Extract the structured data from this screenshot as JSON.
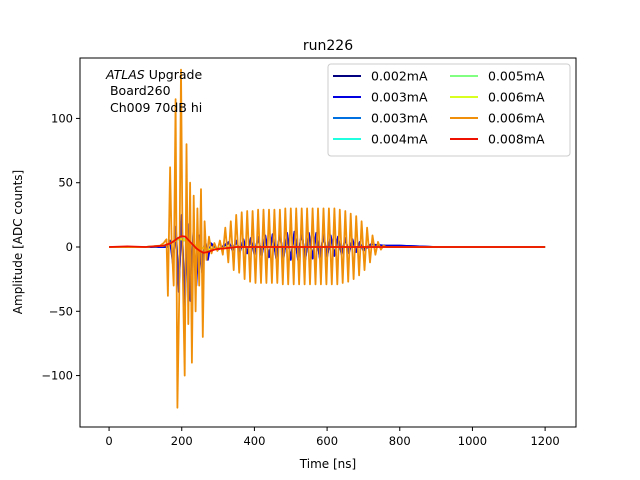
{
  "chart_data": {
    "type": "line",
    "title": "run226",
    "xlabel": "Time [ns]",
    "ylabel": "Amplitude [ADC counts]",
    "xlim": [
      -80,
      1285
    ],
    "ylim": [
      -140,
      147
    ],
    "xticks": [
      0,
      200,
      400,
      600,
      800,
      1000,
      1200
    ],
    "yticks": [
      -100,
      -50,
      0,
      50,
      100
    ],
    "xtick_labels": [
      "0",
      "200",
      "400",
      "600",
      "800",
      "1000",
      "1200"
    ],
    "ytick_labels": [
      "−100",
      "−50",
      "0",
      "50",
      "100"
    ],
    "annotation": {
      "experiment": "ATLAS",
      "line1_rest": " Upgrade",
      "line2": " Board260",
      "line3": " Ch009 70dB hi"
    },
    "legend_position": "upper right",
    "legend_columns": 2,
    "series": [
      {
        "name": "0.002mA",
        "color": "#000080",
        "x": [
          0,
          100,
          160,
          168,
          176,
          184,
          192,
          200,
          208,
          216,
          224,
          232,
          240,
          248,
          256,
          264,
          272,
          280,
          300,
          330,
          340,
          350,
          360,
          370,
          380,
          390,
          400,
          410,
          420,
          430,
          440,
          450,
          460,
          470,
          480,
          490,
          500,
          510,
          520,
          530,
          540,
          550,
          560,
          570,
          580,
          590,
          600,
          610,
          620,
          630,
          640,
          650,
          660,
          670,
          680,
          690,
          700,
          720,
          760,
          800,
          900,
          1000,
          1100,
          1200
        ],
        "y": [
          0,
          0,
          0,
          4,
          -10,
          12,
          -30,
          20,
          -40,
          15,
          -30,
          10,
          -25,
          8,
          -15,
          6,
          -8,
          2,
          -2,
          3,
          -2,
          4,
          -3,
          5,
          -4,
          6,
          -5,
          7,
          -6,
          8,
          -7,
          9,
          -8,
          10,
          -8,
          10,
          -9,
          11,
          -9,
          11,
          -9,
          10,
          -8,
          10,
          -8,
          9,
          -7,
          8,
          -6,
          7,
          -5,
          6,
          -4,
          5,
          -3,
          3,
          -2,
          2,
          1,
          1,
          0,
          0,
          0,
          0
        ]
      },
      {
        "name": "0.003mA",
        "color": "#0000e0",
        "x": [
          0,
          100,
          160,
          168,
          176,
          184,
          192,
          200,
          208,
          216,
          224,
          232,
          240,
          248,
          256,
          264,
          272,
          280,
          300,
          330,
          340,
          350,
          360,
          370,
          380,
          390,
          400,
          410,
          420,
          430,
          440,
          450,
          460,
          470,
          480,
          490,
          500,
          510,
          520,
          530,
          540,
          550,
          560,
          570,
          580,
          590,
          600,
          610,
          620,
          630,
          640,
          650,
          660,
          670,
          680,
          690,
          700,
          720,
          760,
          800,
          900,
          1000,
          1100,
          1200
        ],
        "y": [
          0,
          0,
          0,
          5,
          -14,
          16,
          -35,
          25,
          -50,
          18,
          -42,
          12,
          -30,
          9,
          -20,
          7,
          -10,
          3,
          -2,
          4,
          -3,
          5,
          -4,
          6,
          -5,
          7,
          -6,
          8,
          -7,
          9,
          -8,
          10,
          -9,
          11,
          -9,
          11,
          -10,
          12,
          -10,
          12,
          -10,
          11,
          -9,
          11,
          -9,
          10,
          -8,
          9,
          -7,
          8,
          -6,
          7,
          -5,
          6,
          -4,
          4,
          -3,
          2,
          1,
          1,
          0,
          0,
          0,
          0
        ]
      },
      {
        "name": "0.003mA",
        "color": "#0070e0",
        "x": [
          0,
          100,
          150,
          170,
          190,
          210,
          230,
          250,
          270,
          300,
          350,
          400,
          600,
          800,
          1000,
          1200
        ],
        "y": [
          0,
          0,
          1,
          3,
          6,
          5,
          2,
          0,
          -2,
          -1,
          0,
          0,
          0,
          0,
          0,
          0
        ]
      },
      {
        "name": "0.004mA",
        "color": "#20ffe0",
        "x": [
          0,
          100,
          150,
          170,
          190,
          210,
          230,
          250,
          270,
          300,
          350,
          400,
          600,
          800,
          1000,
          1200
        ],
        "y": [
          0,
          0,
          1,
          3,
          7,
          6,
          2,
          0,
          -2,
          -1,
          0,
          0,
          0,
          0,
          0,
          0
        ]
      },
      {
        "name": "0.005mA",
        "color": "#80ff80",
        "x": [
          0,
          100,
          150,
          170,
          190,
          210,
          230,
          250,
          270,
          300,
          350,
          400,
          600,
          800,
          1000,
          1200
        ],
        "y": [
          0,
          0,
          1,
          3,
          6,
          6,
          2,
          0,
          -2,
          -1,
          0,
          0,
          0,
          0,
          0,
          0
        ]
      },
      {
        "name": "0.006mA",
        "color": "#d8ff20",
        "x": [
          0,
          100,
          150,
          170,
          190,
          210,
          230,
          250,
          270,
          300,
          350,
          400,
          600,
          800,
          1000,
          1200
        ],
        "y": [
          0,
          0,
          1,
          3,
          7,
          5,
          2,
          0,
          -2,
          -1,
          0,
          0,
          0,
          0,
          0,
          0
        ]
      },
      {
        "name": "0.006mA",
        "color": "#f0900a",
        "x": [
          0,
          100,
          140,
          150,
          155,
          158,
          162,
          168,
          172,
          178,
          183,
          188,
          193,
          198,
          203,
          208,
          213,
          218,
          223,
          228,
          233,
          238,
          243,
          248,
          253,
          258,
          263,
          268,
          275,
          282,
          290,
          298,
          305,
          313,
          320,
          328,
          335,
          343,
          350,
          358,
          365,
          373,
          380,
          388,
          395,
          403,
          410,
          418,
          425,
          433,
          440,
          448,
          455,
          463,
          470,
          478,
          485,
          493,
          500,
          508,
          515,
          523,
          530,
          538,
          545,
          553,
          560,
          568,
          575,
          583,
          590,
          598,
          605,
          613,
          620,
          628,
          635,
          643,
          650,
          658,
          665,
          673,
          680,
          688,
          695,
          703,
          710,
          718,
          725,
          733,
          740,
          748,
          755,
          763,
          770,
          780,
          790,
          800,
          850,
          900,
          1000,
          1100,
          1200
        ],
        "y": [
          0,
          0,
          1,
          3,
          5,
          6,
          -38,
          62,
          5,
          -30,
          115,
          -125,
          -40,
          138,
          -20,
          -100,
          80,
          -60,
          50,
          -90,
          40,
          -50,
          30,
          -30,
          45,
          -70,
          20,
          -10,
          8,
          -5,
          3,
          -3,
          5,
          -6,
          15,
          -12,
          20,
          -18,
          25,
          -20,
          27,
          -25,
          28,
          -27,
          28,
          -28,
          29,
          -28,
          29,
          -28,
          29,
          -28,
          29,
          -28,
          29,
          -29,
          30,
          -29,
          30,
          -29,
          30,
          -29,
          30,
          -29,
          30,
          -29,
          30,
          -29,
          30,
          -29,
          30,
          -29,
          30,
          -29,
          30,
          -29,
          29,
          -28,
          28,
          -27,
          26,
          -25,
          24,
          -22,
          20,
          -18,
          15,
          -12,
          9,
          -6,
          4,
          -2,
          1,
          0,
          0,
          0,
          0,
          0,
          0,
          0,
          0,
          0,
          0
        ]
      },
      {
        "name": "0.008mA",
        "color": "#ee1000",
        "x": [
          0,
          50,
          100,
          150,
          170,
          180,
          190,
          200,
          210,
          220,
          230,
          240,
          250,
          260,
          270,
          280,
          290,
          300,
          320,
          350,
          400,
          500,
          600,
          700,
          800,
          900,
          1000,
          1100,
          1200
        ],
        "y": [
          0,
          0.5,
          0,
          1,
          3,
          5,
          7,
          8.5,
          8,
          5,
          2,
          -1,
          -3,
          -4.5,
          -4,
          -3,
          -2,
          -1.5,
          -1,
          0,
          0,
          0,
          0,
          0,
          0,
          0,
          0,
          0,
          0
        ]
      }
    ]
  }
}
